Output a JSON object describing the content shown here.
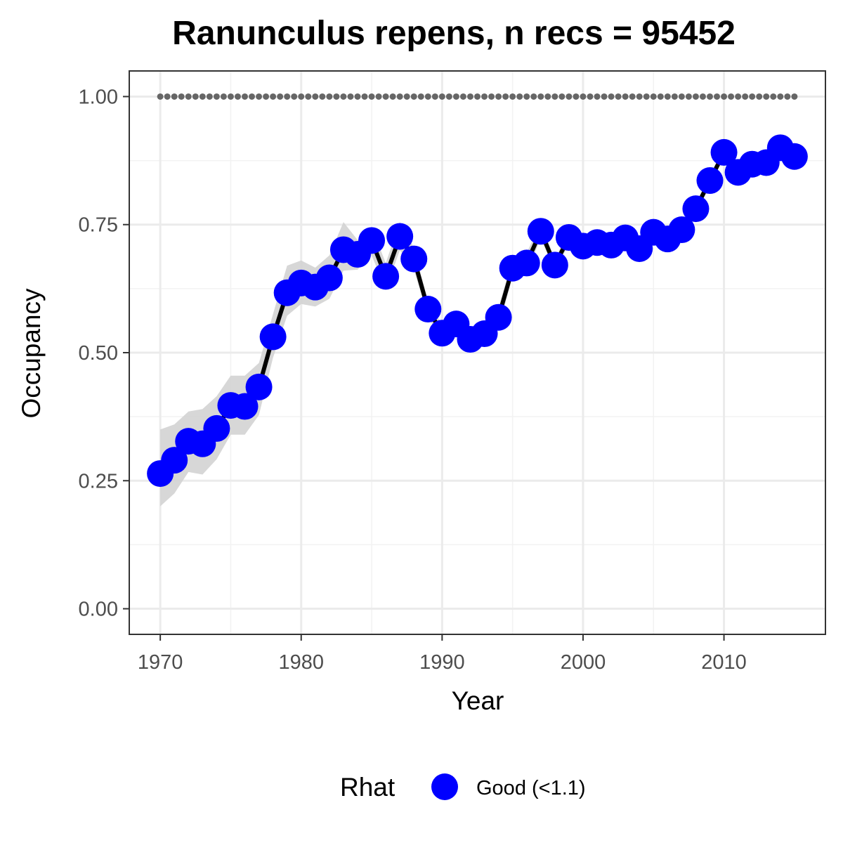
{
  "chart_data": {
    "type": "line",
    "title": "Ranunculus repens, n recs = 95452",
    "xlabel": "Year",
    "ylabel": "Occupancy",
    "xlim": [
      1967.8,
      2017.2
    ],
    "ylim": [
      -0.05,
      1.05
    ],
    "x_ticks": [
      1970,
      1980,
      1990,
      2000,
      2010
    ],
    "x_tick_labels": [
      "1970",
      "1980",
      "1990",
      "2000",
      "2010"
    ],
    "y_ticks": [
      0,
      0.25,
      0.5,
      0.75,
      1
    ],
    "y_tick_labels": [
      "0.00",
      "0.25",
      "0.50",
      "0.75",
      "1.00"
    ],
    "grid": true,
    "reference_line": {
      "y": 1.0,
      "style": "dotted",
      "color": "#666666"
    },
    "series": [
      {
        "marker_color": "#0000ff",
        "line_color": "#000000",
        "ribbon_color": "#d3d3d3",
        "x": [
          1970,
          1971,
          1972,
          1973,
          1974,
          1975,
          1976,
          1977,
          1978,
          1979,
          1980,
          1981,
          1982,
          1983,
          1984,
          1985,
          1986,
          1987,
          1988,
          1989,
          1990,
          1991,
          1992,
          1993,
          1994,
          1995,
          1996,
          1997,
          1998,
          1999,
          2000,
          2001,
          2002,
          2003,
          2004,
          2005,
          2006,
          2007,
          2008,
          2009,
          2010,
          2011,
          2012,
          2013,
          2014,
          2015
        ],
        "y": [
          0.264,
          0.29,
          0.327,
          0.322,
          0.352,
          0.397,
          0.395,
          0.433,
          0.531,
          0.617,
          0.636,
          0.628,
          0.646,
          0.701,
          0.692,
          0.719,
          0.649,
          0.727,
          0.683,
          0.585,
          0.538,
          0.556,
          0.526,
          0.537,
          0.569,
          0.665,
          0.675,
          0.737,
          0.671,
          0.725,
          0.708,
          0.715,
          0.71,
          0.724,
          0.703,
          0.735,
          0.722,
          0.74,
          0.781,
          0.836,
          0.891,
          0.852,
          0.868,
          0.871,
          0.9,
          0.883
        ],
        "lower": [
          0.2,
          0.225,
          0.267,
          0.262,
          0.292,
          0.34,
          0.34,
          0.378,
          0.49,
          0.572,
          0.595,
          0.59,
          0.605,
          0.66,
          0.662,
          0.69,
          0.624,
          0.7,
          0.662,
          0.57,
          0.523,
          0.535,
          0.515,
          0.523,
          0.549,
          0.648,
          0.657,
          0.723,
          0.66,
          0.712,
          0.698,
          0.703,
          0.7,
          0.712,
          0.693,
          0.725,
          0.712,
          0.73,
          0.77,
          0.826,
          0.881,
          0.842,
          0.858,
          0.861,
          0.89,
          0.873
        ],
        "upper": [
          0.35,
          0.36,
          0.385,
          0.39,
          0.415,
          0.455,
          0.455,
          0.48,
          0.575,
          0.67,
          0.68,
          0.666,
          0.69,
          0.755,
          0.72,
          0.745,
          0.675,
          0.755,
          0.705,
          0.6,
          0.555,
          0.577,
          0.54,
          0.555,
          0.588,
          0.683,
          0.695,
          0.752,
          0.683,
          0.738,
          0.718,
          0.727,
          0.72,
          0.736,
          0.713,
          0.745,
          0.732,
          0.75,
          0.792,
          0.846,
          0.901,
          0.862,
          0.878,
          0.881,
          0.91,
          0.893
        ]
      }
    ],
    "legend": {
      "position": "bottom",
      "title": "Rhat",
      "entries": [
        {
          "label": "Good (<1.1)",
          "color": "#0000ff"
        }
      ]
    }
  }
}
